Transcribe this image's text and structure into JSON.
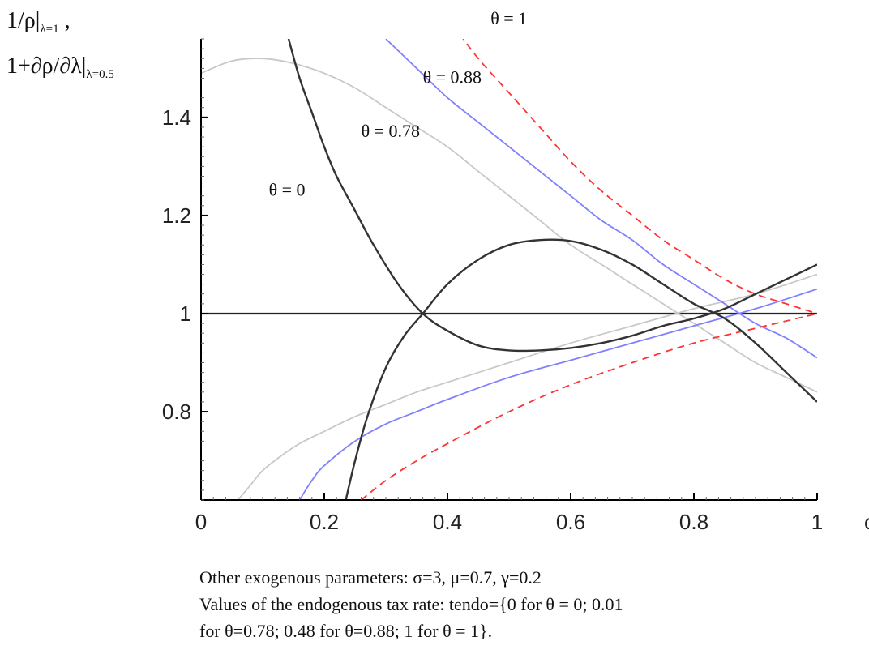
{
  "y_axis_label": {
    "line1_main": "1/ρ|",
    "line1_sub": "λ=1",
    "line1_tail": " ,",
    "line2_main": "1+∂ρ/∂λ|",
    "line2_sub": "λ=0.5"
  },
  "x_axis_label": "φ",
  "notes": {
    "line1": "Other exogenous parameters: σ=3, μ=0.7, γ=0.2",
    "line2": "Values of the endogenous tax rate: tendo={0 for θ = 0; 0.01",
    "line3": "for θ=0.78; 0.48 for θ=0.88; 1 for θ = 1}."
  },
  "colors": {
    "theta_0": "#333333",
    "theta_0_78": "#c8c8c8",
    "theta_0_88": "#8080ff",
    "theta_1": "#ff3333",
    "axis": "#000000"
  },
  "chart_data": {
    "type": "line",
    "xlabel": "φ",
    "ylabel": "1/ρ|λ=1 , 1+∂ρ/∂λ|λ=0.5",
    "xlim": [
      0,
      1
    ],
    "ylim": [
      0.62,
      1.56
    ],
    "x_ticks": [
      0,
      0.2,
      0.4,
      0.6,
      0.8,
      1
    ],
    "x_tick_labels": [
      "0",
      "0.2",
      "0.4",
      "0.6",
      "0.8",
      "1"
    ],
    "y_ticks": [
      0.8,
      1,
      1.2,
      1.4
    ],
    "y_tick_labels": [
      "0.8",
      "1",
      "1.2",
      "1.4"
    ],
    "reference_line": 1.0,
    "grid": false,
    "series": [
      {
        "name": "θ = 0",
        "label": "θ = 0",
        "color_key": "theta_0",
        "dash": "solid",
        "curves": [
          {
            "x": [
              0.14,
              0.16,
              0.18,
              0.2,
              0.22,
              0.25,
              0.28,
              0.32,
              0.36,
              0.4,
              0.45,
              0.5,
              0.55,
              0.6,
              0.65,
              0.7,
              0.75,
              0.8,
              0.85,
              0.9,
              0.95,
              1.0
            ],
            "y": [
              1.57,
              1.48,
              1.41,
              1.34,
              1.28,
              1.21,
              1.14,
              1.06,
              1.0,
              0.965,
              0.935,
              0.925,
              0.925,
              0.93,
              0.94,
              0.955,
              0.975,
              0.99,
              1.01,
              1.04,
              1.07,
              1.1
            ]
          },
          {
            "x": [
              0.235,
              0.25,
              0.27,
              0.3,
              0.33,
              0.36,
              0.4,
              0.45,
              0.5,
              0.55,
              0.6,
              0.65,
              0.7,
              0.75,
              0.8,
              0.85,
              0.9,
              0.95,
              1.0
            ],
            "y": [
              0.62,
              0.7,
              0.79,
              0.89,
              0.955,
              1.0,
              1.06,
              1.11,
              1.14,
              1.15,
              1.148,
              1.13,
              1.1,
              1.06,
              1.02,
              0.99,
              0.94,
              0.88,
              0.82
            ]
          }
        ]
      },
      {
        "name": "θ = 0.78",
        "label": "θ = 0.78",
        "color_key": "theta_0_78",
        "dash": "solid",
        "curves": [
          {
            "x": [
              0,
              0.05,
              0.1,
              0.15,
              0.2,
              0.25,
              0.3,
              0.35,
              0.4,
              0.45,
              0.5,
              0.55,
              0.6,
              0.65,
              0.7,
              0.75,
              0.8,
              0.85,
              0.9,
              0.95,
              1.0
            ],
            "y": [
              1.49,
              1.515,
              1.52,
              1.51,
              1.49,
              1.46,
              1.42,
              1.38,
              1.34,
              1.29,
              1.24,
              1.19,
              1.14,
              1.1,
              1.06,
              1.02,
              0.98,
              0.94,
              0.9,
              0.87,
              0.84
            ]
          },
          {
            "x": [
              0.06,
              0.08,
              0.1,
              0.13,
              0.16,
              0.2,
              0.25,
              0.3,
              0.35,
              0.4,
              0.5,
              0.6,
              0.7,
              0.8,
              0.9,
              1.0
            ],
            "y": [
              0.62,
              0.65,
              0.68,
              0.71,
              0.735,
              0.76,
              0.79,
              0.815,
              0.84,
              0.86,
              0.9,
              0.94,
              0.975,
              1.01,
              1.04,
              1.08
            ]
          }
        ]
      },
      {
        "name": "θ = 0.88",
        "label": "θ = 0.88",
        "color_key": "theta_0_88",
        "dash": "solid",
        "curves": [
          {
            "x": [
              0.3,
              0.35,
              0.4,
              0.45,
              0.5,
              0.55,
              0.6,
              0.65,
              0.7,
              0.75,
              0.8,
              0.85,
              0.9,
              0.95,
              1.0
            ],
            "y": [
              1.56,
              1.5,
              1.44,
              1.39,
              1.34,
              1.29,
              1.24,
              1.19,
              1.15,
              1.1,
              1.06,
              1.02,
              0.98,
              0.95,
              0.91
            ]
          },
          {
            "x": [
              0.16,
              0.18,
              0.2,
              0.25,
              0.3,
              0.35,
              0.4,
              0.5,
              0.6,
              0.7,
              0.8,
              0.9,
              1.0
            ],
            "y": [
              0.62,
              0.66,
              0.69,
              0.74,
              0.775,
              0.8,
              0.825,
              0.87,
              0.905,
              0.94,
              0.975,
              1.01,
              1.05
            ]
          }
        ]
      },
      {
        "name": "θ = 1",
        "label": "θ = 1",
        "color_key": "theta_1",
        "dash": "dashed",
        "curves": [
          {
            "x": [
              0.42,
              0.45,
              0.5,
              0.55,
              0.6,
              0.65,
              0.7,
              0.75,
              0.8,
              0.85,
              0.9,
              0.95,
              1.0
            ],
            "y": [
              1.57,
              1.52,
              1.45,
              1.38,
              1.31,
              1.25,
              1.2,
              1.15,
              1.11,
              1.07,
              1.04,
              1.02,
              1.0
            ]
          },
          {
            "x": [
              0.26,
              0.3,
              0.35,
              0.4,
              0.5,
              0.6,
              0.7,
              0.8,
              0.9,
              1.0
            ],
            "y": [
              0.62,
              0.66,
              0.7,
              0.735,
              0.8,
              0.855,
              0.9,
              0.94,
              0.97,
              1.0
            ]
          }
        ]
      }
    ],
    "annotations": [
      {
        "text": "θ = 0",
        "series": "θ = 0"
      },
      {
        "text": "θ = 0.78",
        "series": "θ = 0.78"
      },
      {
        "text": "θ = 0.88",
        "series": "θ = 0.88"
      },
      {
        "text": "θ = 1",
        "series": "θ = 1"
      }
    ]
  }
}
